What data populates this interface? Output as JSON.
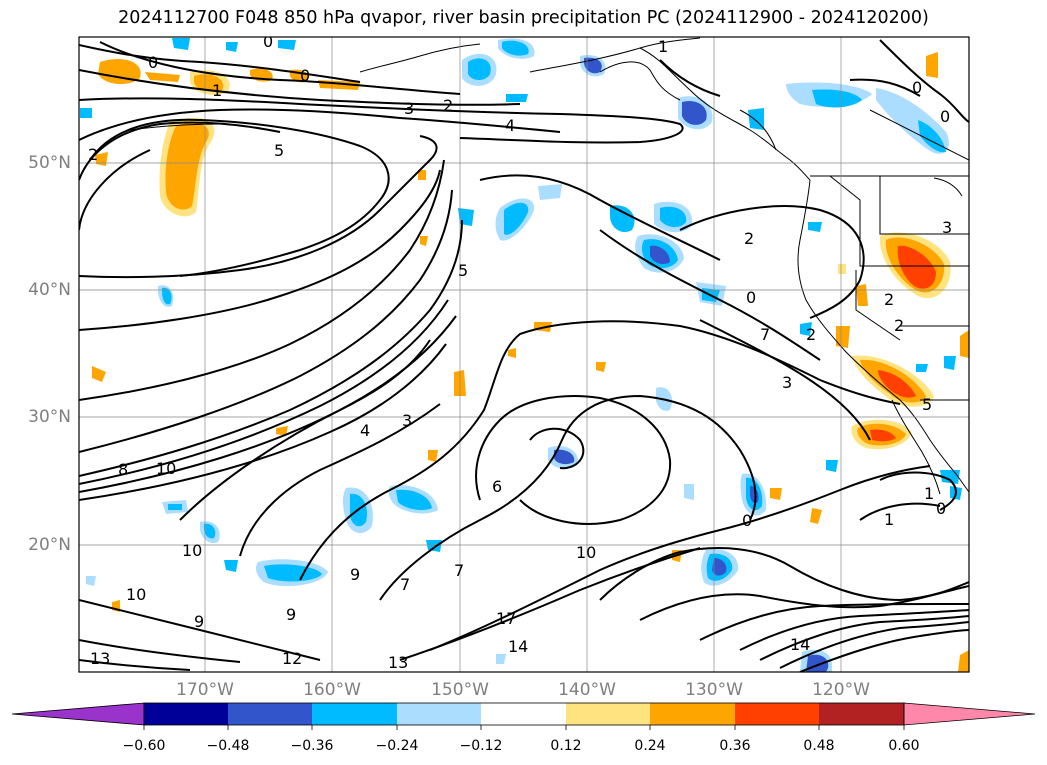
{
  "title": "2024112700 F048 850 hPa qvapor, river basin precipitation PC (2024112900 - 2024120200)",
  "lat_labels": [
    "50°N",
    "40°N",
    "30°N",
    "20°N"
  ],
  "lon_labels": [
    "170°W",
    "160°W",
    "150°W",
    "140°W",
    "130°W",
    "120°W"
  ],
  "colorbar": {
    "ticks": [
      "−0.60",
      "−0.48",
      "−0.36",
      "−0.24",
      "−0.12",
      "0.12",
      "0.24",
      "0.36",
      "0.48",
      "0.60"
    ],
    "colors": [
      "#9933cc",
      "#000099",
      "#3355cc",
      "#00bbff",
      "#aaddff",
      "#ffffff",
      "#ffe380",
      "#ffa500",
      "#ff4000",
      "#b22222",
      "#ff88aa"
    ]
  },
  "contour_labels": [
    "0",
    "0",
    "0",
    "0",
    "0",
    "1",
    "1",
    "2",
    "3",
    "4",
    "2",
    "5",
    "2",
    "3",
    "5",
    "0",
    "2",
    "2",
    "7",
    "4",
    "3",
    "8",
    "10",
    "6",
    "10",
    "10",
    "7",
    "9",
    "10",
    "9",
    "9",
    "7",
    "17",
    "14",
    "13",
    "12",
    "13",
    "14",
    "1",
    "0",
    "1",
    "0",
    "5",
    "2",
    "3"
  ]
}
